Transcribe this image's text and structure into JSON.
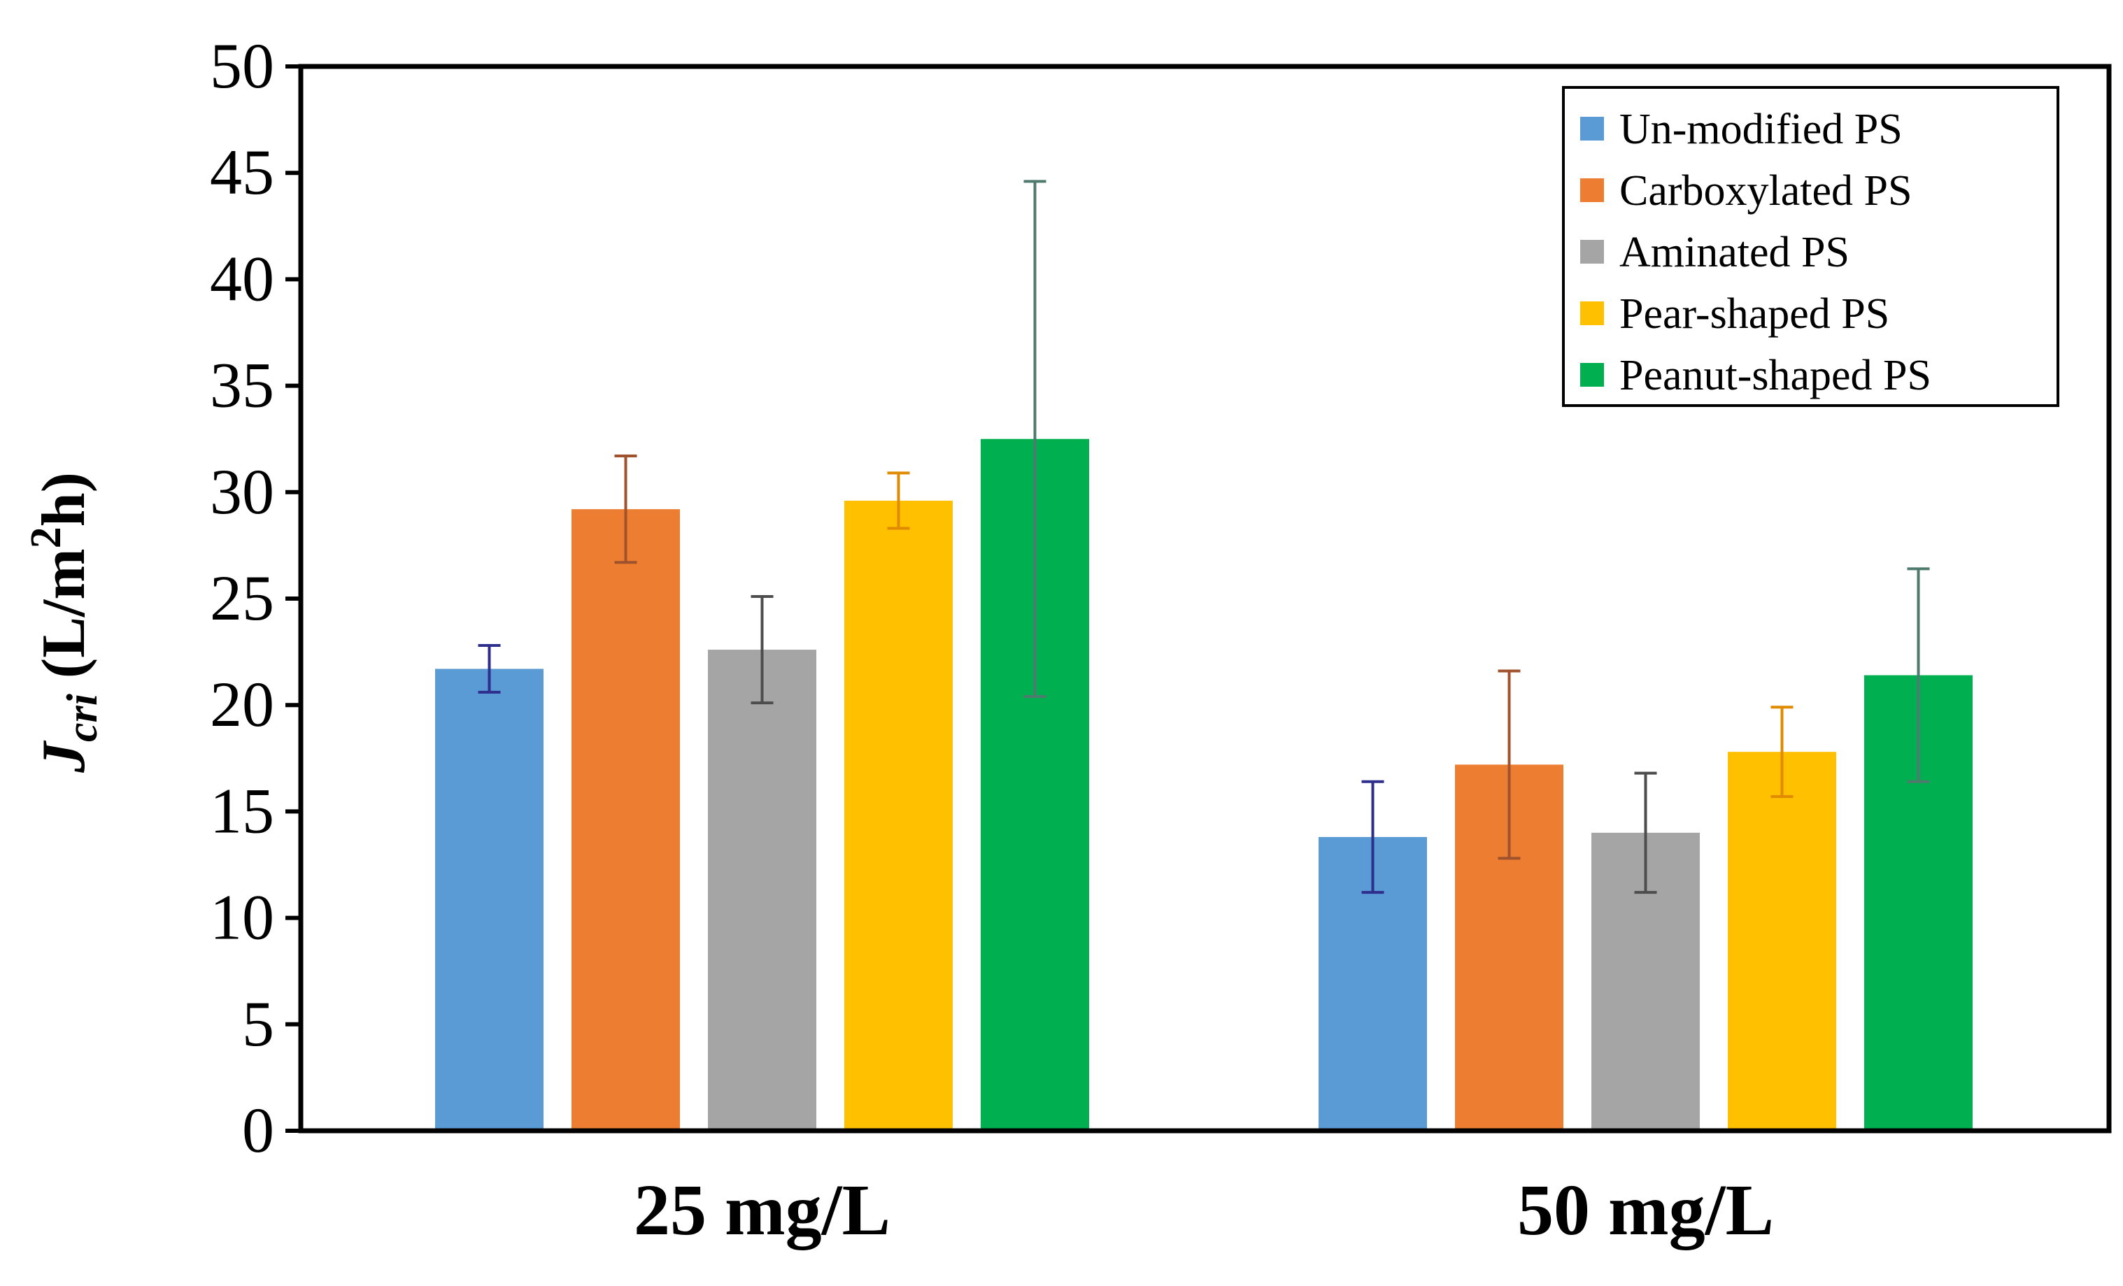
{
  "chart_data": {
    "type": "bar",
    "title": "",
    "xlabel": "",
    "ylabel": {
      "symbol": "J",
      "subscript": "cri",
      "units_prefix": " (L/m",
      "units_superscript": "2",
      "units_suffix": "h)"
    },
    "ylim": [
      0,
      50
    ],
    "yticks": [
      "0",
      "5",
      "10",
      "15",
      "20",
      "25",
      "30",
      "35",
      "40",
      "45",
      "50"
    ],
    "categories": [
      "25 mg/L",
      "50 mg/L"
    ],
    "grid": false,
    "legend_position": "top-right",
    "series": [
      {
        "name": "Un-modified PS",
        "color": "#5B9BD5",
        "err_color": "#2E2E8C",
        "values": [
          21.7,
          13.8
        ],
        "errors": [
          1.1,
          2.6
        ]
      },
      {
        "name": "Carboxylated PS",
        "color": "#ED7D31",
        "err_color": "#A0522D",
        "values": [
          29.2,
          17.2
        ],
        "errors": [
          2.5,
          4.4
        ]
      },
      {
        "name": "Aminated PS",
        "color": "#A5A5A5",
        "err_color": "#4D4D4D",
        "values": [
          22.6,
          14.0
        ],
        "errors": [
          2.5,
          2.8
        ]
      },
      {
        "name": "Pear-shaped PS",
        "color": "#FFC000",
        "err_color": "#E08A00",
        "values": [
          29.6,
          17.8
        ],
        "errors": [
          1.3,
          2.1
        ]
      },
      {
        "name": "Peanut-shaped PS",
        "color": "#00B050",
        "err_color": "#4F7A6E",
        "values": [
          32.5,
          21.4
        ],
        "errors": [
          12.1,
          5.0
        ]
      }
    ]
  }
}
